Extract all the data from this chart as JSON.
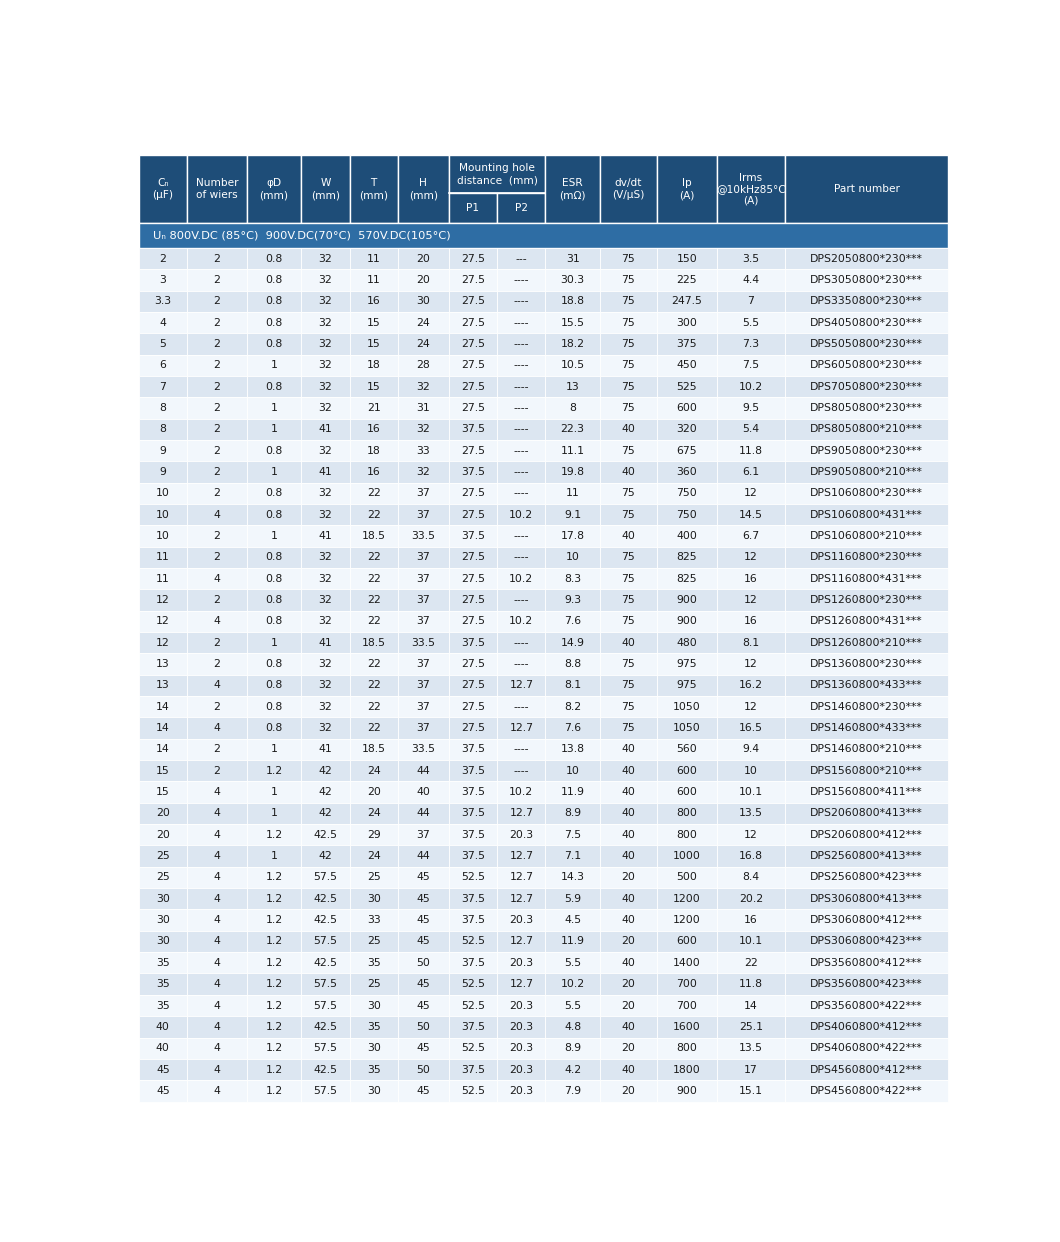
{
  "header_bg": "#1e4d78",
  "header_text_color": "#ffffff",
  "subheader_bg": "#2e6da4",
  "row_even_bg": "#dce6f1",
  "row_odd_bg": "#f2f7fc",
  "row_text_color": "#1a1a1a",
  "border_color": "#ffffff",
  "col_headers_top": [
    "Cₙ\n(μF)",
    "Number\nof wiers",
    "φD\n(mm)",
    "W\n(mm)",
    "T\n(mm)",
    "H\n(mm)",
    "Mounting hole\ndistance  (mm)",
    "",
    "ESR\n(mΩ)",
    "dv/dt\n(V/μS)",
    "Ip\n(A)",
    "Irms\n@10kHz85°C\n(A)",
    "Part number"
  ],
  "col_headers_p": [
    "P1",
    "P2"
  ],
  "mounting_hole_header": "Mounting hole\ndistance  (mm)",
  "subheader_row": "Uₙ 800V.DC (85°C)  900V.DC(70°C)  570V.DC(105°C)",
  "col_widths": [
    0.55,
    0.68,
    0.62,
    0.55,
    0.55,
    0.58,
    0.55,
    0.55,
    0.62,
    0.65,
    0.68,
    0.78,
    1.85
  ],
  "rows": [
    [
      "2",
      "2",
      "0.8",
      "32",
      "11",
      "20",
      "27.5",
      "---",
      "31",
      "75",
      "150",
      "3.5",
      "DPS2050800*230***"
    ],
    [
      "3",
      "2",
      "0.8",
      "32",
      "11",
      "20",
      "27.5",
      "----",
      "30.3",
      "75",
      "225",
      "4.4",
      "DPS3050800*230***"
    ],
    [
      "3.3",
      "2",
      "0.8",
      "32",
      "16",
      "30",
      "27.5",
      "----",
      "18.8",
      "75",
      "247.5",
      "7",
      "DPS3350800*230***"
    ],
    [
      "4",
      "2",
      "0.8",
      "32",
      "15",
      "24",
      "27.5",
      "----",
      "15.5",
      "75",
      "300",
      "5.5",
      "DPS4050800*230***"
    ],
    [
      "5",
      "2",
      "0.8",
      "32",
      "15",
      "24",
      "27.5",
      "----",
      "18.2",
      "75",
      "375",
      "7.3",
      "DPS5050800*230***"
    ],
    [
      "6",
      "2",
      "1",
      "32",
      "18",
      "28",
      "27.5",
      "----",
      "10.5",
      "75",
      "450",
      "7.5",
      "DPS6050800*230***"
    ],
    [
      "7",
      "2",
      "0.8",
      "32",
      "15",
      "32",
      "27.5",
      "----",
      "13",
      "75",
      "525",
      "10.2",
      "DPS7050800*230***"
    ],
    [
      "8",
      "2",
      "1",
      "32",
      "21",
      "31",
      "27.5",
      "----",
      "8",
      "75",
      "600",
      "9.5",
      "DPS8050800*230***"
    ],
    [
      "8",
      "2",
      "1",
      "41",
      "16",
      "32",
      "37.5",
      "----",
      "22.3",
      "40",
      "320",
      "5.4",
      "DPS8050800*210***"
    ],
    [
      "9",
      "2",
      "0.8",
      "32",
      "18",
      "33",
      "27.5",
      "----",
      "11.1",
      "75",
      "675",
      "11.8",
      "DPS9050800*230***"
    ],
    [
      "9",
      "2",
      "1",
      "41",
      "16",
      "32",
      "37.5",
      "----",
      "19.8",
      "40",
      "360",
      "6.1",
      "DPS9050800*210***"
    ],
    [
      "10",
      "2",
      "0.8",
      "32",
      "22",
      "37",
      "27.5",
      "----",
      "11",
      "75",
      "750",
      "12",
      "DPS1060800*230***"
    ],
    [
      "10",
      "4",
      "0.8",
      "32",
      "22",
      "37",
      "27.5",
      "10.2",
      "9.1",
      "75",
      "750",
      "14.5",
      "DPS1060800*431***"
    ],
    [
      "10",
      "2",
      "1",
      "41",
      "18.5",
      "33.5",
      "37.5",
      "----",
      "17.8",
      "40",
      "400",
      "6.7",
      "DPS1060800*210***"
    ],
    [
      "11",
      "2",
      "0.8",
      "32",
      "22",
      "37",
      "27.5",
      "----",
      "10",
      "75",
      "825",
      "12",
      "DPS1160800*230***"
    ],
    [
      "11",
      "4",
      "0.8",
      "32",
      "22",
      "37",
      "27.5",
      "10.2",
      "8.3",
      "75",
      "825",
      "16",
      "DPS1160800*431***"
    ],
    [
      "12",
      "2",
      "0.8",
      "32",
      "22",
      "37",
      "27.5",
      "----",
      "9.3",
      "75",
      "900",
      "12",
      "DPS1260800*230***"
    ],
    [
      "12",
      "4",
      "0.8",
      "32",
      "22",
      "37",
      "27.5",
      "10.2",
      "7.6",
      "75",
      "900",
      "16",
      "DPS1260800*431***"
    ],
    [
      "12",
      "2",
      "1",
      "41",
      "18.5",
      "33.5",
      "37.5",
      "----",
      "14.9",
      "40",
      "480",
      "8.1",
      "DPS1260800*210***"
    ],
    [
      "13",
      "2",
      "0.8",
      "32",
      "22",
      "37",
      "27.5",
      "----",
      "8.8",
      "75",
      "975",
      "12",
      "DPS1360800*230***"
    ],
    [
      "13",
      "4",
      "0.8",
      "32",
      "22",
      "37",
      "27.5",
      "12.7",
      "8.1",
      "75",
      "975",
      "16.2",
      "DPS1360800*433***"
    ],
    [
      "14",
      "2",
      "0.8",
      "32",
      "22",
      "37",
      "27.5",
      "----",
      "8.2",
      "75",
      "1050",
      "12",
      "DPS1460800*230***"
    ],
    [
      "14",
      "4",
      "0.8",
      "32",
      "22",
      "37",
      "27.5",
      "12.7",
      "7.6",
      "75",
      "1050",
      "16.5",
      "DPS1460800*433***"
    ],
    [
      "14",
      "2",
      "1",
      "41",
      "18.5",
      "33.5",
      "37.5",
      "----",
      "13.8",
      "40",
      "560",
      "9.4",
      "DPS1460800*210***"
    ],
    [
      "15",
      "2",
      "1.2",
      "42",
      "24",
      "44",
      "37.5",
      "----",
      "10",
      "40",
      "600",
      "10",
      "DPS1560800*210***"
    ],
    [
      "15",
      "4",
      "1",
      "42",
      "20",
      "40",
      "37.5",
      "10.2",
      "11.9",
      "40",
      "600",
      "10.1",
      "DPS1560800*411***"
    ],
    [
      "20",
      "4",
      "1",
      "42",
      "24",
      "44",
      "37.5",
      "12.7",
      "8.9",
      "40",
      "800",
      "13.5",
      "DPS2060800*413***"
    ],
    [
      "20",
      "4",
      "1.2",
      "42.5",
      "29",
      "37",
      "37.5",
      "20.3",
      "7.5",
      "40",
      "800",
      "12",
      "DPS2060800*412***"
    ],
    [
      "25",
      "4",
      "1",
      "42",
      "24",
      "44",
      "37.5",
      "12.7",
      "7.1",
      "40",
      "1000",
      "16.8",
      "DPS2560800*413***"
    ],
    [
      "25",
      "4",
      "1.2",
      "57.5",
      "25",
      "45",
      "52.5",
      "12.7",
      "14.3",
      "20",
      "500",
      "8.4",
      "DPS2560800*423***"
    ],
    [
      "30",
      "4",
      "1.2",
      "42.5",
      "30",
      "45",
      "37.5",
      "12.7",
      "5.9",
      "40",
      "1200",
      "20.2",
      "DPS3060800*413***"
    ],
    [
      "30",
      "4",
      "1.2",
      "42.5",
      "33",
      "45",
      "37.5",
      "20.3",
      "4.5",
      "40",
      "1200",
      "16",
      "DPS3060800*412***"
    ],
    [
      "30",
      "4",
      "1.2",
      "57.5",
      "25",
      "45",
      "52.5",
      "12.7",
      "11.9",
      "20",
      "600",
      "10.1",
      "DPS3060800*423***"
    ],
    [
      "35",
      "4",
      "1.2",
      "42.5",
      "35",
      "50",
      "37.5",
      "20.3",
      "5.5",
      "40",
      "1400",
      "22",
      "DPS3560800*412***"
    ],
    [
      "35",
      "4",
      "1.2",
      "57.5",
      "25",
      "45",
      "52.5",
      "12.7",
      "10.2",
      "20",
      "700",
      "11.8",
      "DPS3560800*423***"
    ],
    [
      "35",
      "4",
      "1.2",
      "57.5",
      "30",
      "45",
      "52.5",
      "20.3",
      "5.5",
      "20",
      "700",
      "14",
      "DPS3560800*422***"
    ],
    [
      "40",
      "4",
      "1.2",
      "42.5",
      "35",
      "50",
      "37.5",
      "20.3",
      "4.8",
      "40",
      "1600",
      "25.1",
      "DPS4060800*412***"
    ],
    [
      "40",
      "4",
      "1.2",
      "57.5",
      "30",
      "45",
      "52.5",
      "20.3",
      "8.9",
      "20",
      "800",
      "13.5",
      "DPS4060800*422***"
    ],
    [
      "45",
      "4",
      "1.2",
      "42.5",
      "35",
      "50",
      "37.5",
      "20.3",
      "4.2",
      "40",
      "1800",
      "17",
      "DPS4560800*412***"
    ],
    [
      "45",
      "4",
      "1.2",
      "57.5",
      "30",
      "45",
      "52.5",
      "20.3",
      "7.9",
      "20",
      "900",
      "15.1",
      "DPS4560800*422***"
    ]
  ]
}
